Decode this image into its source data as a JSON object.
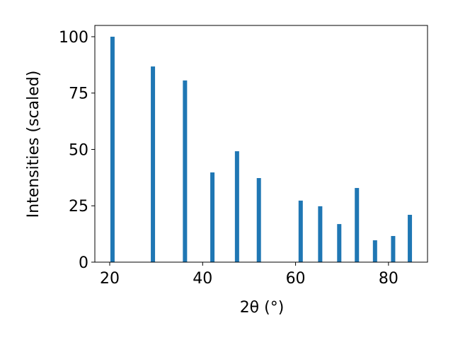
{
  "chart_data": {
    "type": "bar",
    "xlabel": "2θ (°)",
    "ylabel": "Intensities (scaled)",
    "x": [
      20.6,
      29.3,
      36.2,
      42.1,
      47.4,
      52.1,
      61.1,
      65.3,
      69.4,
      73.2,
      77.1,
      81.0,
      84.6
    ],
    "values": [
      100,
      86.8,
      80.6,
      39.8,
      49.2,
      37.3,
      27.3,
      24.8,
      16.9,
      32.9,
      9.7,
      11.6,
      21.0
    ],
    "color": "#1f77b4",
    "xlim": [
      16.8,
      88.4
    ],
    "xticks": [
      20,
      40,
      60,
      80
    ],
    "ylim": [
      0,
      105
    ],
    "yticks": [
      0,
      25,
      50,
      75,
      100
    ]
  }
}
